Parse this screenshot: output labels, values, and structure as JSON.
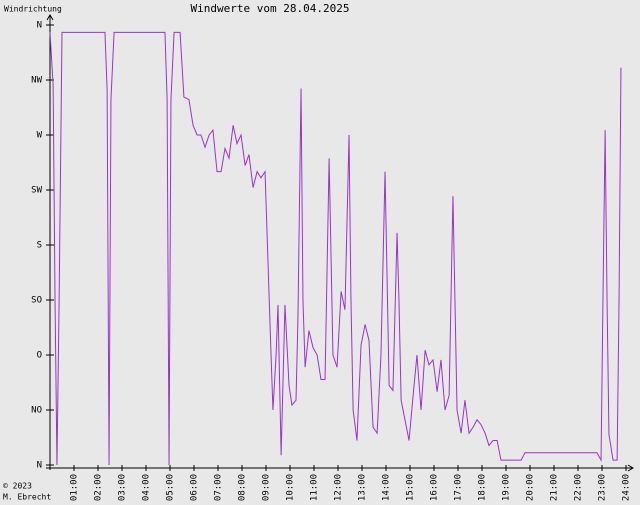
{
  "chart_data": {
    "type": "line",
    "title": "Windwerte vom 28.04.2025",
    "y_label": "Windrichtung",
    "copyright": "© 2023",
    "author": "M. Ebrecht",
    "color": "#9933cc",
    "grid": false,
    "xlim": [
      0,
      24
    ],
    "ylim": [
      0,
      360
    ],
    "xticks": [
      {
        "value": 1,
        "label": "01:00"
      },
      {
        "value": 2,
        "label": "02:00"
      },
      {
        "value": 3,
        "label": "03:00"
      },
      {
        "value": 4,
        "label": "04:00"
      },
      {
        "value": 5,
        "label": "05:00"
      },
      {
        "value": 6,
        "label": "06:00"
      },
      {
        "value": 7,
        "label": "07:00"
      },
      {
        "value": 8,
        "label": "08:00"
      },
      {
        "value": 9,
        "label": "09:00"
      },
      {
        "value": 10,
        "label": "10:00"
      },
      {
        "value": 11,
        "label": "11:00"
      },
      {
        "value": 12,
        "label": "12:00"
      },
      {
        "value": 13,
        "label": "13:00"
      },
      {
        "value": 14,
        "label": "14:00"
      },
      {
        "value": 15,
        "label": "15:00"
      },
      {
        "value": 16,
        "label": "16:00"
      },
      {
        "value": 17,
        "label": "17:00"
      },
      {
        "value": 18,
        "label": "18:00"
      },
      {
        "value": 19,
        "label": "19:00"
      },
      {
        "value": 20,
        "label": "20:00"
      },
      {
        "value": 21,
        "label": "21:00"
      },
      {
        "value": 22,
        "label": "22:00"
      },
      {
        "value": 23,
        "label": "23:00"
      },
      {
        "value": 24,
        "label": "24:00"
      }
    ],
    "yticks": [
      {
        "value": 0,
        "label": "N"
      },
      {
        "value": 45,
        "label": "NO"
      },
      {
        "value": 90,
        "label": "O"
      },
      {
        "value": 135,
        "label": "SO"
      },
      {
        "value": 180,
        "label": "S"
      },
      {
        "value": 225,
        "label": "SW"
      },
      {
        "value": 270,
        "label": "W"
      },
      {
        "value": 315,
        "label": "NW"
      },
      {
        "value": 360,
        "label": "N"
      }
    ],
    "x": [
      0.0,
      0.13,
      0.21,
      0.29,
      0.38,
      0.5,
      2.29,
      2.38,
      2.46,
      2.54,
      2.67,
      4.79,
      4.88,
      4.96,
      5.04,
      5.17,
      5.42,
      5.58,
      5.79,
      5.96,
      6.13,
      6.29,
      6.46,
      6.63,
      6.79,
      6.96,
      7.13,
      7.29,
      7.46,
      7.63,
      7.79,
      7.96,
      8.13,
      8.29,
      8.46,
      8.63,
      8.79,
      8.96,
      9.08,
      9.21,
      9.29,
      9.42,
      9.5,
      9.63,
      9.79,
      9.96,
      10.08,
      10.25,
      10.33,
      10.46,
      10.54,
      10.63,
      10.79,
      10.96,
      11.13,
      11.29,
      11.46,
      11.63,
      11.79,
      11.96,
      12.13,
      12.29,
      12.46,
      12.54,
      12.63,
      12.79,
      12.96,
      13.13,
      13.29,
      13.46,
      13.63,
      13.79,
      13.96,
      14.13,
      14.29,
      14.46,
      14.54,
      14.63,
      14.79,
      14.96,
      15.13,
      15.29,
      15.46,
      15.63,
      15.79,
      15.96,
      16.13,
      16.29,
      16.46,
      16.63,
      16.79,
      16.96,
      17.13,
      17.29,
      17.46,
      17.63,
      17.79,
      17.96,
      18.13,
      18.29,
      18.46,
      18.63,
      18.79,
      18.96,
      19.63,
      19.79,
      22.79,
      22.96,
      23.04,
      23.13,
      23.21,
      23.29,
      23.46,
      23.63,
      23.71,
      23.79
    ],
    "values": [
      354,
      311,
      135,
      0,
      135,
      354,
      354,
      307,
      0,
      299,
      354,
      354,
      299,
      0,
      299,
      354,
      354,
      301,
      299,
      278,
      270,
      270,
      260,
      270,
      274,
      240,
      240,
      259,
      251,
      278,
      263,
      270,
      245,
      254,
      227,
      240,
      235,
      240,
      168,
      90,
      45,
      90,
      131,
      8,
      131,
      65,
      49,
      53,
      119,
      308,
      135,
      80,
      110,
      96,
      90,
      70,
      70,
      251,
      90,
      80,
      142,
      127,
      270,
      135,
      45,
      20,
      98,
      115,
      102,
      31,
      26,
      90,
      240,
      65,
      61,
      190,
      135,
      53,
      37,
      20,
      57,
      90,
      45,
      94,
      82,
      86,
      60,
      86,
      45,
      57,
      220,
      45,
      26,
      53,
      26,
      31,
      37,
      33,
      26,
      16,
      20,
      20,
      4,
      4,
      4,
      10,
      10,
      4,
      135,
      274,
      135,
      25,
      4,
      4,
      135,
      325
    ]
  }
}
